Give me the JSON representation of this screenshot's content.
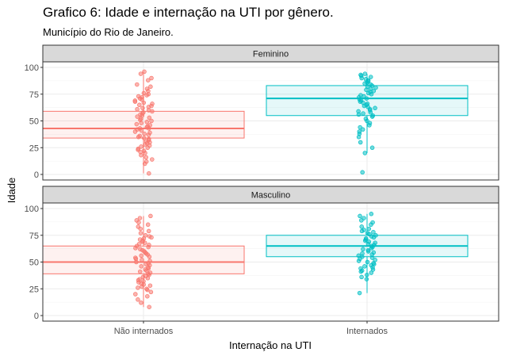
{
  "chart_data": {
    "type": "boxplot_jitter",
    "title": "Grafico 6: Idade e internação na UTI por gênero.",
    "subtitle": "Município do Rio de Janeiro.",
    "xlabel": "Internação na UTI",
    "ylabel": "Idade",
    "categories": [
      "Não internados",
      "Internados"
    ],
    "ylim": [
      0,
      100
    ],
    "yticks": [
      0,
      25,
      50,
      75,
      100
    ],
    "grid": true,
    "colors": {
      "Não internados": "#F8766D",
      "Internados": "#00BFC4"
    },
    "panels": [
      {
        "name": "Feminino",
        "boxes": [
          {
            "category": "Não internados",
            "q1": 34,
            "median": 43,
            "q3": 59,
            "whisker_low": 1,
            "whisker_high": 96,
            "points": [
              96,
              94,
              90,
              88,
              84,
              82,
              80,
              78,
              76,
              75,
              74,
              73,
              72,
              71,
              70,
              69,
              68,
              67,
              66,
              65,
              64,
              63,
              62,
              61,
              60,
              59,
              58,
              57,
              56,
              55,
              54,
              53,
              52,
              51,
              50,
              49,
              48,
              47,
              46,
              45,
              44,
              43,
              43,
              42,
              41,
              40,
              39,
              38,
              37,
              36,
              35,
              34,
              33,
              32,
              31,
              30,
              29,
              28,
              27,
              26,
              25,
              24,
              23,
              22,
              21,
              20,
              18,
              16,
              14,
              12,
              10,
              1
            ]
          },
          {
            "category": "Internados",
            "q1": 55,
            "median": 71,
            "q3": 83,
            "whisker_low": 20,
            "whisker_high": 94,
            "points": [
              94,
              93,
              92,
              91,
              90,
              89,
              88,
              87,
              86,
              85,
              84,
              83,
              82,
              81,
              80,
              79,
              78,
              77,
              76,
              75,
              74,
              73,
              72,
              71,
              70,
              69,
              68,
              67,
              66,
              65,
              64,
              63,
              62,
              61,
              60,
              59,
              58,
              57,
              56,
              55,
              54,
              52,
              50,
              48,
              46,
              44,
              42,
              40,
              38,
              35,
              30,
              25,
              20,
              2
            ]
          }
        ]
      },
      {
        "name": "Masculino",
        "boxes": [
          {
            "category": "Não internados",
            "q1": 39,
            "median": 50,
            "q3": 65,
            "whisker_low": 8,
            "whisker_high": 93,
            "points": [
              93,
              91,
              89,
              87,
              85,
              83,
              81,
              79,
              77,
              75,
              74,
              73,
              72,
              71,
              70,
              69,
              68,
              67,
              66,
              65,
              64,
              63,
              62,
              61,
              60,
              59,
              58,
              57,
              56,
              55,
              54,
              53,
              52,
              51,
              50,
              49,
              48,
              47,
              46,
              45,
              44,
              43,
              42,
              41,
              40,
              39,
              38,
              37,
              36,
              35,
              34,
              33,
              32,
              31,
              30,
              29,
              28,
              27,
              26,
              25,
              24,
              22,
              20,
              18,
              15,
              12,
              8
            ]
          },
          {
            "category": "Internados",
            "q1": 55,
            "median": 65,
            "q3": 75,
            "whisker_low": 21,
            "whisker_high": 95,
            "points": [
              95,
              93,
              91,
              89,
              87,
              85,
              83,
              81,
              80,
              79,
              78,
              77,
              76,
              75,
              74,
              73,
              72,
              71,
              70,
              69,
              68,
              67,
              66,
              65,
              64,
              63,
              62,
              61,
              60,
              59,
              58,
              57,
              56,
              55,
              54,
              53,
              52,
              51,
              50,
              49,
              48,
              47,
              46,
              45,
              44,
              43,
              42,
              41,
              40,
              38,
              36,
              34,
              21
            ]
          }
        ]
      }
    ]
  }
}
